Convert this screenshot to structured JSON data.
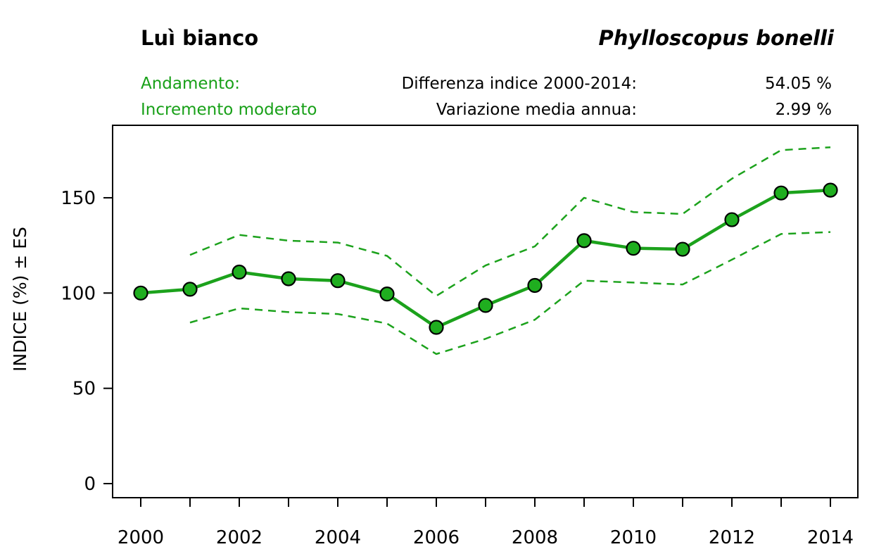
{
  "header": {
    "common_name": "Luì bianco",
    "scientific_name": "Phylloscopus bonelli",
    "trend_label": "Andamento:",
    "trend_value": "Incremento moderato",
    "diff_label": "Differenza indice 2000-2014:",
    "diff_value": "54.05 %",
    "var_label": "Variazione media annua:",
    "var_value": "2.99 %"
  },
  "colors": {
    "accent_green": "#18a018",
    "line_green": "#1ca21c",
    "marker_green": "#1fae1f",
    "axis_black": "#000000"
  },
  "chart_data": {
    "type": "line",
    "title": "",
    "xlabel": "",
    "ylabel": "INDICE (%) ± ES",
    "x": [
      2000,
      2001,
      2002,
      2003,
      2004,
      2005,
      2006,
      2007,
      2008,
      2009,
      2010,
      2011,
      2012,
      2013,
      2014
    ],
    "series": [
      {
        "name": "indice",
        "style": "solid-markers",
        "values": [
          100,
          102,
          111,
          107.5,
          106.5,
          99.5,
          82,
          93.5,
          104,
          127.5,
          123.5,
          123,
          138.5,
          152.5,
          154
        ]
      },
      {
        "name": "banda-superiore-es",
        "style": "dashed",
        "values": [
          null,
          120,
          130.5,
          127.5,
          126.5,
          119.5,
          98.5,
          114.5,
          124.5,
          150,
          142.5,
          141.5,
          160,
          175,
          176.5
        ]
      },
      {
        "name": "banda-inferiore-es",
        "style": "dashed",
        "values": [
          null,
          84.5,
          92,
          90,
          89,
          84,
          68,
          76,
          86,
          106.5,
          105.5,
          104.5,
          117.5,
          131,
          132
        ]
      }
    ],
    "yticks": [
      0,
      50,
      100,
      150
    ],
    "xtick_labels": [
      2000,
      2002,
      2004,
      2006,
      2008,
      2010,
      2012,
      2014
    ],
    "ylim": [
      -7,
      188
    ],
    "xlim": [
      1999.4,
      2014.6
    ],
    "grid": false,
    "legend": "none"
  }
}
